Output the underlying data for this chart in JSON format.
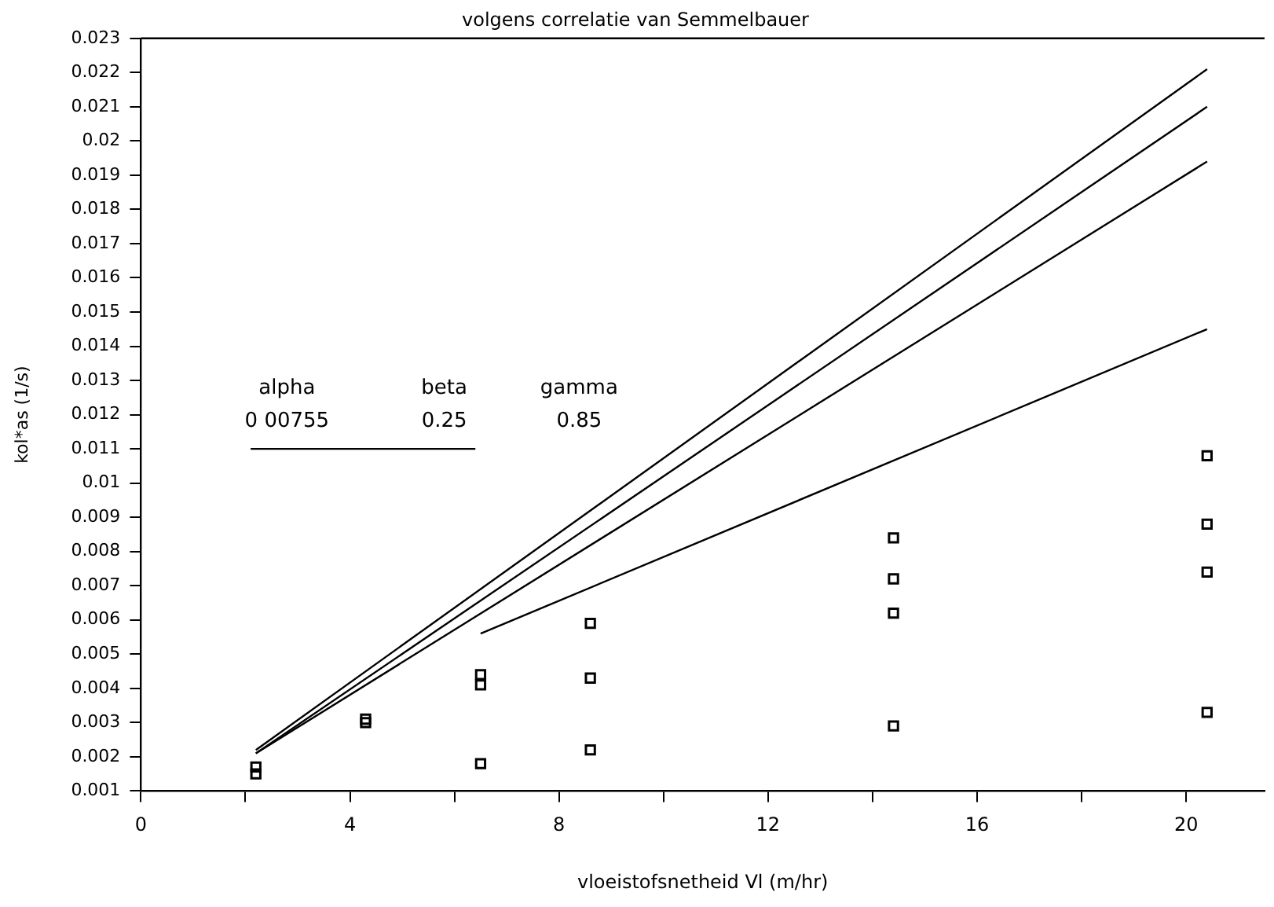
{
  "chart_data": {
    "type": "scatter",
    "title": "volgens correlatie van Semmelbauer",
    "xlabel": "vloeistofsnetheid Vl (m/hr)",
    "ylabel": "kol*as (1/s)",
    "annotations": [
      "alpha",
      "beta",
      "gamma",
      "0 00755",
      "0.25",
      "0.85"
    ],
    "series": [
      {
        "color": "#000000",
        "marker": "square",
        "x": [
          2.2,
          2.2,
          4.3,
          4.3,
          6.5,
          6.5,
          6.5,
          8.6,
          8.6,
          8.6,
          14.4,
          14.4,
          14.4,
          14.4,
          20.4,
          20.4,
          20.4,
          20.4
        ],
        "values": [
          0.0015,
          0.0017,
          0.0031,
          0.003,
          0.0044,
          0.0041,
          0.0018,
          0.0059,
          0.0043,
          0.0022,
          0.0084,
          0.0072,
          0.0062,
          0.0029,
          0.0108,
          0.0088,
          0.0074,
          0.0033
        ]
      },
      {
        "type": "line",
        "color": "#000000",
        "marker": "none",
        "x": [
          2.2,
          20.4
        ],
        "values": [
          0.0022,
          0.0221
        ]
      },
      {
        "type": "line",
        "color": "#000000",
        "marker": "none",
        "x": [
          2.2,
          20.4
        ],
        "values": [
          0.0021,
          0.021
        ]
      },
      {
        "type": "line",
        "color": "#000000",
        "marker": "none",
        "x": [
          2.2,
          20.4
        ],
        "values": [
          0.0021,
          0.0194
        ]
      },
      {
        "type": "line",
        "color": "#000000",
        "marker": "none",
        "x": [
          6.5,
          20.4
        ],
        "values": [
          0.0056,
          0.0145
        ]
      },
      {
        "type": "line",
        "color": "#000000",
        "marker": "none",
        "x": [
          2.1,
          6.4
        ],
        "values": [
          0.011,
          0.011
        ]
      }
    ],
    "xlim": [
      0,
      21.5
    ],
    "xticks": [
      0,
      {
        "value": 2,
        "label": null
      },
      4,
      {
        "value": 6,
        "label": null
      },
      8,
      {
        "value": 10,
        "label": null
      },
      12,
      {
        "value": 14,
        "label": null
      },
      16,
      {
        "value": 18,
        "label": null
      },
      20
    ],
    "ylim": [
      0.001,
      0.023
    ],
    "yticks": [
      0.001,
      0.002,
      0.003,
      0.004,
      0.005,
      0.006,
      0.007,
      0.008,
      0.009,
      0.01,
      0.011,
      0.012,
      0.013,
      0.014,
      0.015,
      0.016,
      0.017,
      0.018,
      0.019,
      0.02,
      0.021,
      0.022,
      0.023
    ],
    "grid": false,
    "legend": false
  }
}
